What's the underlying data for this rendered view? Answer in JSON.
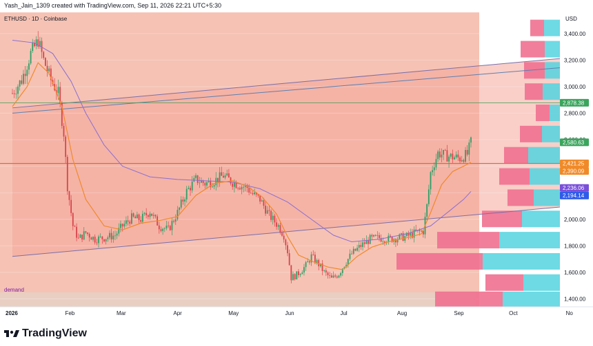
{
  "header": {
    "created_line": "Yash_Jain_1309 created with TradingView.com, Sep 11, 2026 22:21 UTC+5:30"
  },
  "chart_title": "ETHUSD · 1D · Coinbase",
  "currency": "USD",
  "annotation": "demand",
  "footer": {
    "brand": "TradingView",
    "logo_icon": "tradingview-logo-icon"
  },
  "colors": {
    "band_fill": "#f6c2b4",
    "band_dark": "#f4a79a",
    "channel_line": "#7a6ea8",
    "resistance_blue": "#5b7fb0",
    "support_orange": "#e8641e",
    "green_line": "#3f9e52",
    "candle_up": "#2e9e66",
    "candle_down": "#d9434a",
    "ema_fast": "#f0892b",
    "ema_slow": "#8a6fd1",
    "vp_pink": "#f07090",
    "vp_cyan": "#54d4df",
    "label_green": "#3aa55c",
    "label_orange": "#f08a28",
    "label_purple": "#7a4fd9",
    "label_blue": "#2f5bea"
  },
  "chart_data": {
    "type": "candlestick",
    "symbol": "ETHUSD",
    "interval": "1D",
    "exchange": "Coinbase",
    "y_axis": {
      "ticks": [
        1400,
        1600,
        1800,
        2000,
        2200,
        2400,
        2600,
        2800,
        3000,
        3200,
        3400
      ],
      "range": [
        1340,
        3560
      ]
    },
    "x_axis": {
      "labels": [
        "2026",
        "Feb",
        "Mar",
        "Apr",
        "May",
        "Jun",
        "Jul",
        "Aug",
        "Sep",
        "Oct",
        "No"
      ],
      "label_days": [
        0,
        31,
        59,
        90,
        120,
        151,
        181,
        212,
        243,
        273,
        304
      ]
    },
    "ohlc_anchors": [
      [
        0,
        2950
      ],
      [
        5,
        3050
      ],
      [
        10,
        3250
      ],
      [
        14,
        3350
      ],
      [
        17,
        3200
      ],
      [
        21,
        3050
      ],
      [
        25,
        2950
      ],
      [
        28,
        2650
      ],
      [
        30,
        2250
      ],
      [
        33,
        1950
      ],
      [
        36,
        1850
      ],
      [
        40,
        1900
      ],
      [
        45,
        1850
      ],
      [
        50,
        1860
      ],
      [
        56,
        1880
      ],
      [
        60,
        1950
      ],
      [
        65,
        2010
      ],
      [
        70,
        2000
      ],
      [
        75,
        2060
      ],
      [
        80,
        1950
      ],
      [
        85,
        1920
      ],
      [
        90,
        2050
      ],
      [
        95,
        2210
      ],
      [
        100,
        2300
      ],
      [
        105,
        2270
      ],
      [
        110,
        2290
      ],
      [
        115,
        2330
      ],
      [
        120,
        2280
      ],
      [
        125,
        2250
      ],
      [
        128,
        2240
      ],
      [
        130,
        2200
      ],
      [
        135,
        2150
      ],
      [
        140,
        2030
      ],
      [
        145,
        1950
      ],
      [
        148,
        1880
      ],
      [
        150,
        1760
      ],
      [
        152,
        1560
      ],
      [
        155,
        1580
      ],
      [
        160,
        1650
      ],
      [
        163,
        1720
      ],
      [
        167,
        1660
      ],
      [
        170,
        1600
      ],
      [
        174,
        1550
      ],
      [
        178,
        1590
      ],
      [
        181,
        1660
      ],
      [
        185,
        1740
      ],
      [
        190,
        1800
      ],
      [
        195,
        1850
      ],
      [
        200,
        1860
      ],
      [
        205,
        1850
      ],
      [
        210,
        1860
      ],
      [
        215,
        1870
      ],
      [
        220,
        1900
      ],
      [
        224,
        1910
      ],
      [
        226,
        2100
      ],
      [
        228,
        2350
      ],
      [
        232,
        2500
      ],
      [
        236,
        2480
      ],
      [
        240,
        2470
      ],
      [
        244,
        2460
      ],
      [
        248,
        2490
      ],
      [
        250,
        2580
      ]
    ],
    "ema_fast": [
      [
        0,
        2850
      ],
      [
        8,
        3000
      ],
      [
        14,
        3180
      ],
      [
        20,
        3100
      ],
      [
        27,
        2850
      ],
      [
        33,
        2450
      ],
      [
        40,
        2150
      ],
      [
        50,
        1950
      ],
      [
        60,
        1920
      ],
      [
        70,
        1970
      ],
      [
        80,
        1990
      ],
      [
        90,
        2020
      ],
      [
        100,
        2180
      ],
      [
        110,
        2270
      ],
      [
        120,
        2290
      ],
      [
        128,
        2250
      ],
      [
        136,
        2170
      ],
      [
        144,
        2040
      ],
      [
        150,
        1870
      ],
      [
        156,
        1730
      ],
      [
        164,
        1680
      ],
      [
        172,
        1640
      ],
      [
        180,
        1620
      ],
      [
        188,
        1720
      ],
      [
        196,
        1790
      ],
      [
        205,
        1830
      ],
      [
        215,
        1860
      ],
      [
        223,
        1890
      ],
      [
        228,
        2050
      ],
      [
        234,
        2260
      ],
      [
        240,
        2360
      ],
      [
        246,
        2400
      ],
      [
        250,
        2430
      ]
    ],
    "ema_slow": [
      [
        0,
        3350
      ],
      [
        12,
        3330
      ],
      [
        22,
        3250
      ],
      [
        32,
        3040
      ],
      [
        40,
        2800
      ],
      [
        50,
        2560
      ],
      [
        60,
        2400
      ],
      [
        75,
        2320
      ],
      [
        90,
        2300
      ],
      [
        105,
        2290
      ],
      [
        120,
        2280
      ],
      [
        135,
        2230
      ],
      [
        150,
        2130
      ],
      [
        165,
        1980
      ],
      [
        175,
        1880
      ],
      [
        185,
        1830
      ],
      [
        200,
        1850
      ],
      [
        215,
        1890
      ],
      [
        228,
        1950
      ],
      [
        238,
        2060
      ],
      [
        246,
        2150
      ],
      [
        250,
        2210
      ]
    ],
    "price_labels": [
      {
        "text": "2,878.38",
        "value": 2878.38,
        "color": "#3aa55c"
      },
      {
        "text": "2,580.63",
        "value": 2580.63,
        "color": "#3aa55c"
      },
      {
        "text": "2,421.25",
        "value": 2421.25,
        "color": "#f08a28"
      },
      {
        "text": "2,390.09",
        "value": 2390.09,
        "color": "#f08a28"
      },
      {
        "text": "2,236.06",
        "value": 2236.06,
        "color": "#7a4fd9"
      },
      {
        "text": "2,194.14",
        "value": 2194.14,
        "color": "#2f5bea"
      }
    ],
    "horizontal_lines": [
      {
        "name": "green-level",
        "value": 2878.38
      },
      {
        "name": "orange-level",
        "value": 2421.25
      }
    ],
    "trend_channel": {
      "upper": [
        [
          0,
          2840
        ],
        [
          305,
          3220
        ]
      ],
      "lower": [
        [
          0,
          1720
        ],
        [
          305,
          2100
        ]
      ],
      "blue_upper": [
        [
          0,
          2800
        ],
        [
          305,
          3150
        ]
      ]
    },
    "volume_profile": [
      {
        "price": 3440,
        "pink": 20,
        "cyan": 23
      },
      {
        "price": 3280,
        "pink": 35,
        "cyan": 22
      },
      {
        "price": 3120,
        "pink": 30,
        "cyan": 22
      },
      {
        "price": 2960,
        "pink": 26,
        "cyan": 25
      },
      {
        "price": 2800,
        "pink": 20,
        "cyan": 15
      },
      {
        "price": 2640,
        "pink": 32,
        "cyan": 26
      },
      {
        "price": 2480,
        "pink": 35,
        "cyan": 46
      },
      {
        "price": 2320,
        "pink": 44,
        "cyan": 44
      },
      {
        "price": 2160,
        "pink": 38,
        "cyan": 38
      },
      {
        "price": 2000,
        "pink": 58,
        "cyan": 55
      },
      {
        "price": 1840,
        "pink": 90,
        "cyan": 88
      },
      {
        "price": 1680,
        "pink": 125,
        "cyan": 112
      },
      {
        "price": 1520,
        "pink": 55,
        "cyan": 53
      },
      {
        "price": 1390,
        "pink": 98,
        "cyan": 83
      }
    ]
  }
}
